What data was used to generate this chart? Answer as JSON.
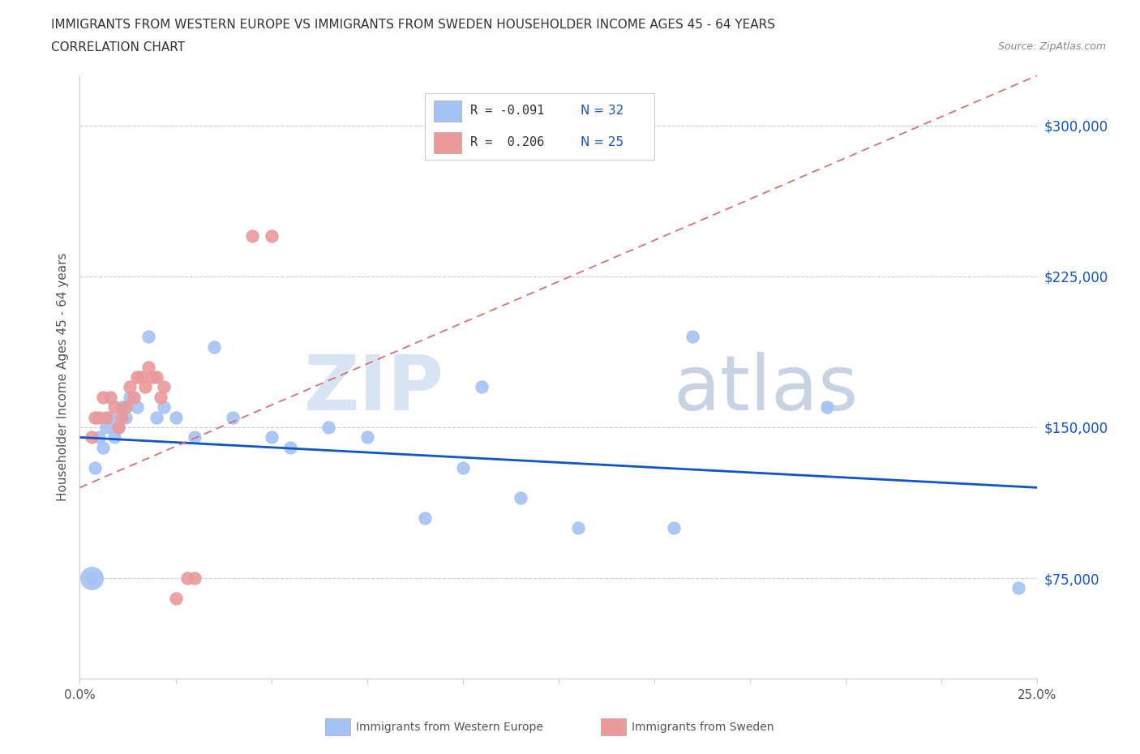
{
  "title_line1": "IMMIGRANTS FROM WESTERN EUROPE VS IMMIGRANTS FROM SWEDEN HOUSEHOLDER INCOME AGES 45 - 64 YEARS",
  "title_line2": "CORRELATION CHART",
  "source_text": "Source: ZipAtlas.com",
  "ylabel": "Householder Income Ages 45 - 64 years",
  "xlim": [
    0.0,
    0.25
  ],
  "ylim": [
    25000,
    325000
  ],
  "ytick_values": [
    75000,
    150000,
    225000,
    300000
  ],
  "ytick_labels": [
    "$75,000",
    "$150,000",
    "$225,000",
    "$300,000"
  ],
  "legend_R_blue": "R = -0.091",
  "legend_N_blue": "N = 32",
  "legend_R_pink": "R =  0.206",
  "legend_N_pink": "N = 25",
  "watermark_zip": "ZIP",
  "watermark_atlas": "atlas",
  "blue_scatter_color": "#a4c2f4",
  "pink_scatter_color": "#ea9999",
  "blue_line_color": "#1155cc",
  "pink_line_color": "#e06666",
  "blue_legend_fill": "#a4c2f4",
  "pink_legend_fill": "#ea9999",
  "background_color": "#ffffff",
  "grid_color": "#cccccc",
  "blue_label_color": "#1155cc",
  "right_tick_color": "#1155cc",
  "bottom_label_color": "#666666",
  "blue_x": [
    0.003,
    0.004,
    0.005,
    0.006,
    0.007,
    0.008,
    0.009,
    0.01,
    0.011,
    0.012,
    0.013,
    0.015,
    0.018,
    0.02,
    0.022,
    0.025,
    0.03,
    0.035,
    0.04,
    0.05,
    0.055,
    0.065,
    0.075,
    0.09,
    0.1,
    0.105,
    0.115,
    0.13,
    0.155,
    0.16,
    0.195,
    0.245
  ],
  "blue_y": [
    75000,
    130000,
    145000,
    140000,
    150000,
    155000,
    145000,
    150000,
    160000,
    155000,
    165000,
    160000,
    195000,
    155000,
    160000,
    155000,
    145000,
    190000,
    155000,
    145000,
    140000,
    150000,
    145000,
    105000,
    130000,
    170000,
    115000,
    100000,
    100000,
    195000,
    160000,
    70000
  ],
  "pink_x": [
    0.003,
    0.004,
    0.005,
    0.006,
    0.007,
    0.008,
    0.009,
    0.01,
    0.011,
    0.012,
    0.013,
    0.014,
    0.015,
    0.016,
    0.017,
    0.018,
    0.019,
    0.02,
    0.021,
    0.022,
    0.025,
    0.028,
    0.03,
    0.045,
    0.05
  ],
  "pink_y": [
    145000,
    155000,
    155000,
    165000,
    155000,
    165000,
    160000,
    150000,
    155000,
    160000,
    170000,
    165000,
    175000,
    175000,
    170000,
    180000,
    175000,
    175000,
    165000,
    170000,
    65000,
    75000,
    75000,
    245000,
    245000
  ]
}
